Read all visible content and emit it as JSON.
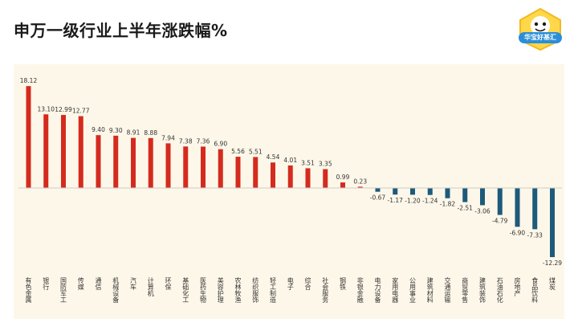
{
  "header": {
    "title": "申万一级行业上半年涨跌幅%"
  },
  "logo": {
    "icon": "mascot-logo-icon",
    "badge_text": "华宝好基汇"
  },
  "colors": {
    "positive": "#d42b1e",
    "negative": "#1e5a7a",
    "panel_bg": "#fdf7e9"
  },
  "chart_data": {
    "type": "bar",
    "title": "申万一级行业上半年涨跌幅%",
    "xlabel": "",
    "ylabel": "",
    "grid": false,
    "legend": "none",
    "ylim": [
      -13,
      19
    ],
    "categories": [
      "有色金属",
      "银行",
      "国防军工",
      "传媒",
      "通信",
      "机械设备",
      "汽车",
      "计算机",
      "环保",
      "基础化工",
      "医药生物",
      "美容护理",
      "农林牧渔",
      "纺织服饰",
      "轻工制造",
      "电子",
      "综合",
      "社会服务",
      "钢铁",
      "非银金融",
      "电力设备",
      "家用电器",
      "公用事业",
      "建筑材料",
      "交通运输",
      "商贸零售",
      "建筑装饰",
      "石油石化",
      "房地产",
      "食品饮料",
      "煤炭"
    ],
    "values": [
      18.12,
      13.1,
      12.99,
      12.77,
      9.4,
      9.3,
      8.91,
      8.88,
      7.94,
      7.38,
      7.36,
      6.9,
      5.56,
      5.51,
      4.54,
      4.01,
      3.51,
      3.35,
      0.99,
      0.23,
      -0.67,
      -1.17,
      -1.2,
      -1.24,
      -1.82,
      -2.51,
      -3.06,
      -4.79,
      -6.9,
      -7.33,
      -12.29
    ],
    "value_labels": [
      "18.12",
      "13.10",
      "12.99",
      "12.77",
      "9.40",
      "9.30",
      "8.91",
      "8.88",
      "7.94",
      "7.38",
      "7.36",
      "6.90",
      "5.56",
      "5.51",
      "4.54",
      "4.01",
      "3.51",
      "3.35",
      "0.99",
      "0.23",
      "-0.67",
      "-1.17",
      "-1.20",
      "-1.24",
      "-1.82",
      "-2.51",
      "-3.06",
      "-4.79",
      "-6.90",
      "-7.33",
      "-12.29"
    ]
  }
}
